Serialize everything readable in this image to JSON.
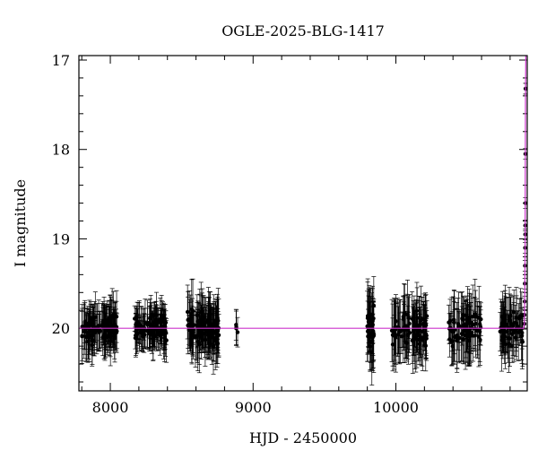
{
  "chart_data": {
    "type": "scatter",
    "title": "OGLE-2025-BLG-1417",
    "xlabel": "HJD - 2450000",
    "ylabel": "I magnitude",
    "xlim": [
      7780,
      10920
    ],
    "ylim": [
      20.7,
      16.95
    ],
    "y_inverted": true,
    "x_ticks": [
      "8000",
      "9000",
      "10000"
    ],
    "x_tick_values": [
      8000,
      9000,
      10000
    ],
    "y_ticks": [
      "17",
      "18",
      "19",
      "20"
    ],
    "y_tick_values": [
      17,
      18,
      19,
      20
    ],
    "baseline": 20.0,
    "point_color": "#000000",
    "model_color": "#cc33cc",
    "seasons": [
      {
        "start": 7800,
        "end": 8050,
        "n": 110,
        "scatter": 0.15,
        "err": 0.22
      },
      {
        "start": 8170,
        "end": 8400,
        "n": 100,
        "scatter": 0.13,
        "err": 0.2
      },
      {
        "start": 8540,
        "end": 8760,
        "n": 110,
        "scatter": 0.17,
        "err": 0.26
      },
      {
        "start": 8880,
        "end": 8900,
        "n": 4,
        "scatter": 0.1,
        "err": 0.15
      },
      {
        "start": 9800,
        "end": 9850,
        "n": 35,
        "scatter": 0.22,
        "err": 0.3
      },
      {
        "start": 9970,
        "end": 10220,
        "n": 90,
        "scatter": 0.18,
        "err": 0.28
      },
      {
        "start": 10370,
        "end": 10600,
        "n": 75,
        "scatter": 0.18,
        "err": 0.28
      },
      {
        "start": 10730,
        "end": 10890,
        "n": 60,
        "scatter": 0.16,
        "err": 0.25
      }
    ],
    "event_points": [
      {
        "x": 10900,
        "y": 19.95
      },
      {
        "x": 10901,
        "y": 19.85
      },
      {
        "x": 10902,
        "y": 19.7
      },
      {
        "x": 10903,
        "y": 19.5
      },
      {
        "x": 10904,
        "y": 19.3
      },
      {
        "x": 10905,
        "y": 19.1
      },
      {
        "x": 10906,
        "y": 18.95
      },
      {
        "x": 10906,
        "y": 18.85
      },
      {
        "x": 10907,
        "y": 18.6
      },
      {
        "x": 10907,
        "y": 18.05
      },
      {
        "x": 10908,
        "y": 17.32
      },
      {
        "x": 10909,
        "y": 17.32
      }
    ],
    "model": [
      {
        "x": 7780,
        "y": 20.0
      },
      {
        "x": 10895,
        "y": 20.0
      },
      {
        "x": 10900,
        "y": 19.95
      },
      {
        "x": 10903,
        "y": 19.6
      },
      {
        "x": 10905,
        "y": 19.1
      },
      {
        "x": 10906,
        "y": 18.5
      },
      {
        "x": 10907,
        "y": 17.9
      },
      {
        "x": 10908,
        "y": 17.32
      },
      {
        "x": 10910,
        "y": 16.95
      }
    ]
  }
}
